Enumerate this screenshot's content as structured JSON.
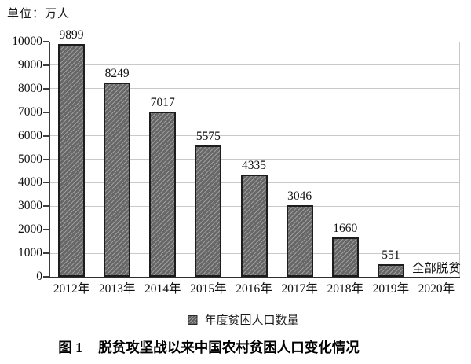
{
  "unit_label": "单位：万人",
  "annotation": "全部脱贫",
  "legend": {
    "label": "年度贫困人口数量"
  },
  "caption": {
    "figure_no": "图 1",
    "title": "脱贫攻坚战以来中国农村贫困人口变化情况"
  },
  "colors": {
    "bar_fill": "#676767",
    "bar_hatch": "#9d9d9d",
    "bar_border": "#1d1d1d",
    "gridline": "#c9c9c9",
    "axis": "#3d3d3d",
    "text": "#111111",
    "background": "#ffffff"
  },
  "chart_data": {
    "type": "bar",
    "title": "图 1 脱贫攻坚战以来中国农村贫困人口变化情况",
    "unit": "万人",
    "unit_label": "单位：万人",
    "categories": [
      "2012年",
      "2013年",
      "2014年",
      "2015年",
      "2016年",
      "2017年",
      "2018年",
      "2019年",
      "2020年"
    ],
    "values": [
      9899,
      8249,
      7017,
      5575,
      4335,
      3046,
      1660,
      551,
      null
    ],
    "annotations": [
      {
        "category": "2020年",
        "text": "全部脱贫"
      }
    ],
    "legend": [
      "年度贫困人口数量"
    ],
    "legend_position": "bottom",
    "ylim": [
      0,
      10000
    ],
    "ytick_interval": 1000,
    "yticks": [
      0,
      1000,
      2000,
      3000,
      4000,
      5000,
      6000,
      7000,
      8000,
      9000,
      10000
    ],
    "grid": true,
    "bar_style": "diagonal-hatch"
  }
}
